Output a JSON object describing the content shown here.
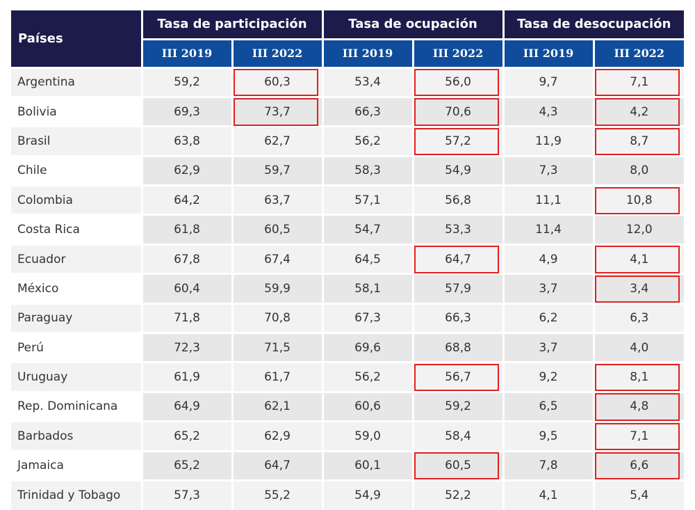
{
  "table": {
    "country_header": "Países",
    "groups": [
      "Tasa de participación",
      "Tasa de ocupación",
      "Tasa de desocupación"
    ],
    "periods": [
      "III 2019",
      "III 2022",
      "III 2019",
      "III 2022",
      "III 2019",
      "III 2022"
    ],
    "rows": [
      {
        "country": "Argentina",
        "values": [
          "59,2",
          "60,3",
          "53,4",
          "56,0",
          "9,7",
          "7,1"
        ],
        "highlighted": [
          false,
          true,
          false,
          true,
          false,
          true
        ]
      },
      {
        "country": "Bolivia",
        "values": [
          "69,3",
          "73,7",
          "66,3",
          "70,6",
          "4,3",
          "4,2"
        ],
        "highlighted": [
          false,
          true,
          false,
          true,
          false,
          true
        ]
      },
      {
        "country": "Brasil",
        "values": [
          "63,8",
          "62,7",
          "56,2",
          "57,2",
          "11,9",
          "8,7"
        ],
        "highlighted": [
          false,
          false,
          false,
          true,
          false,
          true
        ]
      },
      {
        "country": "Chile",
        "values": [
          "62,9",
          "59,7",
          "58,3",
          "54,9",
          "7,3",
          "8,0"
        ],
        "highlighted": [
          false,
          false,
          false,
          false,
          false,
          false
        ]
      },
      {
        "country": "Colombia",
        "values": [
          "64,2",
          "63,7",
          "57,1",
          "56,8",
          "11,1",
          "10,8"
        ],
        "highlighted": [
          false,
          false,
          false,
          false,
          false,
          true
        ]
      },
      {
        "country": "Costa Rica",
        "values": [
          "61,8",
          "60,5",
          "54,7",
          "53,3",
          "11,4",
          "12,0"
        ],
        "highlighted": [
          false,
          false,
          false,
          false,
          false,
          false
        ]
      },
      {
        "country": "Ecuador",
        "values": [
          "67,8",
          "67,4",
          "64,5",
          "64,7",
          "4,9",
          "4,1"
        ],
        "highlighted": [
          false,
          false,
          false,
          true,
          false,
          true
        ]
      },
      {
        "country": "México",
        "values": [
          "60,4",
          "59,9",
          "58,1",
          "57,9",
          "3,7",
          "3,4"
        ],
        "highlighted": [
          false,
          false,
          false,
          false,
          false,
          true
        ]
      },
      {
        "country": "Paraguay",
        "values": [
          "71,8",
          "70,8",
          "67,3",
          "66,3",
          "6,2",
          "6,3"
        ],
        "highlighted": [
          false,
          false,
          false,
          false,
          false,
          false
        ]
      },
      {
        "country": "Perú",
        "values": [
          "72,3",
          "71,5",
          "69,6",
          "68,8",
          "3,7",
          "4,0"
        ],
        "highlighted": [
          false,
          false,
          false,
          false,
          false,
          false
        ]
      },
      {
        "country": "Uruguay",
        "values": [
          "61,9",
          "61,7",
          "56,2",
          "56,7",
          "9,2",
          "8,1"
        ],
        "highlighted": [
          false,
          false,
          false,
          true,
          false,
          true
        ]
      },
      {
        "country": "Rep. Dominicana",
        "values": [
          "64,9",
          "62,1",
          "60,6",
          "59,2",
          "6,5",
          "4,8"
        ],
        "highlighted": [
          false,
          false,
          false,
          false,
          false,
          true
        ]
      },
      {
        "country": "Barbados",
        "values": [
          "65,2",
          "62,9",
          "59,0",
          "58,4",
          "9,5",
          "7,1"
        ],
        "highlighted": [
          false,
          false,
          false,
          false,
          false,
          true
        ]
      },
      {
        "country": "Jamaica",
        "values": [
          "65,2",
          "64,7",
          "60,1",
          "60,5",
          "7,8",
          "6,6"
        ],
        "highlighted": [
          false,
          false,
          false,
          true,
          false,
          true
        ]
      },
      {
        "country": "Trinidad y Tobago",
        "values": [
          "57,3",
          "55,2",
          "54,9",
          "52,2",
          "4,1",
          "5,4"
        ],
        "highlighted": [
          false,
          false,
          false,
          false,
          false,
          false
        ]
      }
    ]
  },
  "colors": {
    "header_dark": "#1c1b4a",
    "header_blue": "#0f4c9c",
    "highlight_border": "#e02020"
  }
}
